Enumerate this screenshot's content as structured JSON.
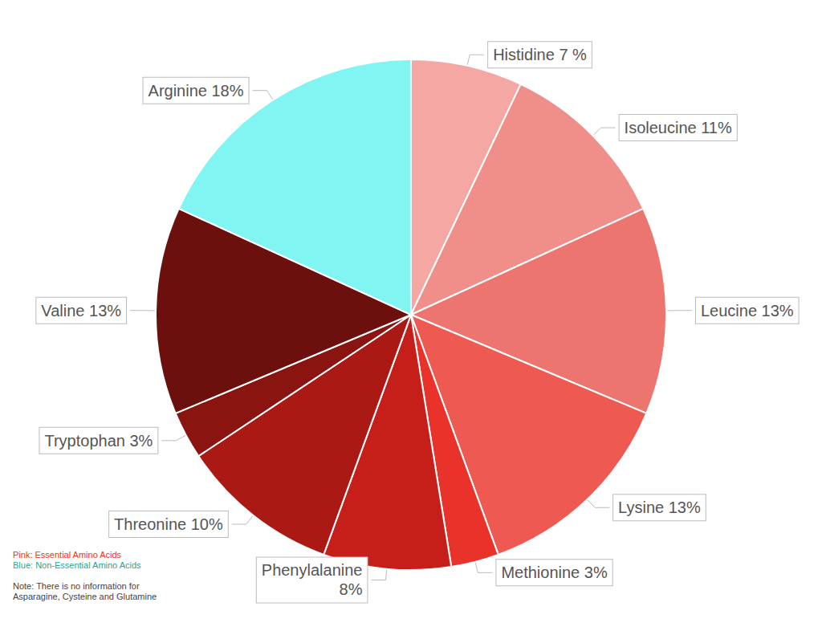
{
  "chart_data": {
    "type": "pie",
    "categories": [
      "Histidine",
      "Isoleucine",
      "Leucine",
      "Lysine",
      "Methionine",
      "Phenylalanine",
      "Threonine",
      "Tryptophan",
      "Valine",
      "Arginine"
    ],
    "values": [
      7,
      11,
      13,
      13,
      3,
      8,
      10,
      3,
      13,
      18
    ],
    "value_labels": [
      "Histidine 7 %",
      "Isoleucine 11%",
      "Leucine 13%",
      "Lysine 13%",
      "Methionine 3%",
      "Phenylalanine\n8%",
      "Threonine 10%",
      "Tryptophan 3%",
      "Valine 13%",
      "Arginine 18%"
    ],
    "colors": [
      "#f4a7a3",
      "#f08f8a",
      "#ec766f",
      "#ee5a52",
      "#e8322a",
      "#c61f1a",
      "#ab1914",
      "#8a1410",
      "#6b100c",
      "#81f5f2"
    ],
    "data_labels": true,
    "annotations": [
      "Pink: Essential Amino Acids",
      "Blue: Non-Essential Amino Acids",
      "Note: There is no information for Asparagine, Cysteine and Glutamine"
    ]
  }
}
